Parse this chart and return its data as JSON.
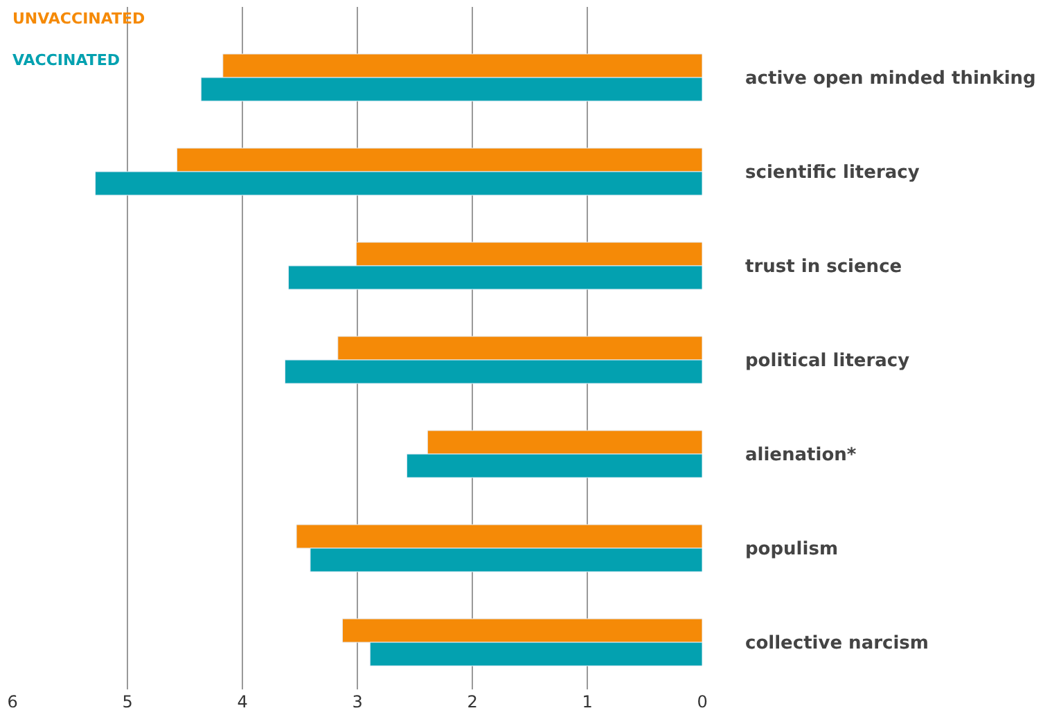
{
  "chart_data": {
    "type": "bar",
    "orientation": "horizontal",
    "categories": [
      "active open minded thinking",
      "scientific literacy",
      "trust in science",
      "political literacy",
      "alienation*",
      "populism",
      "collective narcism"
    ],
    "series": [
      {
        "name": "UNVACCINATED",
        "color": "#f58a07",
        "values": [
          4.17,
          4.57,
          3.01,
          3.17,
          2.39,
          3.53,
          3.13
        ]
      },
      {
        "name": "VACCINATED",
        "color": "#03a1b0",
        "values": [
          4.36,
          5.28,
          3.6,
          3.63,
          2.57,
          3.41,
          2.89
        ]
      }
    ],
    "xlim": [
      6,
      0
    ],
    "xticks": [
      6,
      5,
      4,
      3,
      2,
      1,
      0
    ],
    "grid": "x"
  }
}
